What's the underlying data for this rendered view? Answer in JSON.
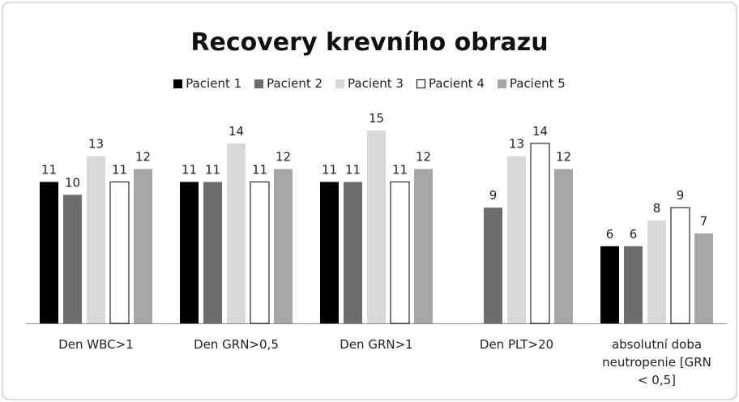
{
  "chart_data": {
    "type": "bar",
    "title": "Recovery krevního obrazu",
    "categories": [
      "Den WBC>1",
      "Den GRN>0,5",
      "Den GRN>1",
      "Den PLT>20",
      "absolutní doba neutropenie [GRN < 0,5]"
    ],
    "series": [
      {
        "name": "Pacient 1",
        "color": "#000000",
        "values": [
          11,
          11,
          11,
          null,
          6
        ]
      },
      {
        "name": "Pacient 2",
        "color": "#6d6d6d",
        "values": [
          10,
          11,
          11,
          9,
          6
        ]
      },
      {
        "name": "Pacient 3",
        "color": "#d9d9d9",
        "values": [
          13,
          14,
          15,
          13,
          8
        ]
      },
      {
        "name": "Pacient 4",
        "color": "#ffffff",
        "values": [
          11,
          11,
          11,
          14,
          9
        ]
      },
      {
        "name": "Pacient 5",
        "color": "#a6a6a6",
        "values": [
          12,
          12,
          12,
          12,
          7
        ]
      }
    ],
    "legend": "top"
  }
}
